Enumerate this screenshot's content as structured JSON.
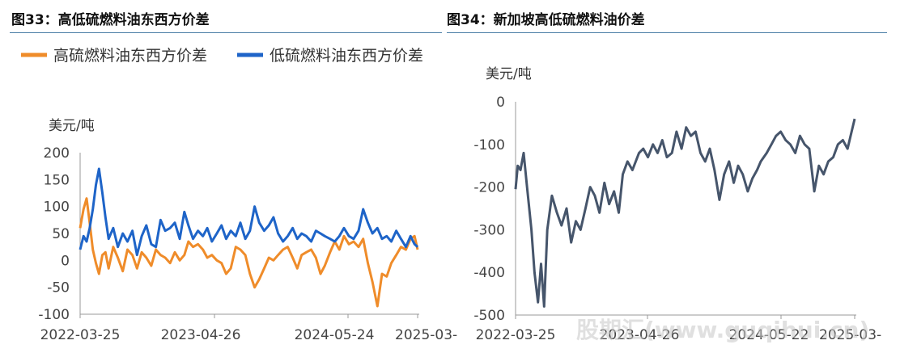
{
  "header": {
    "left_title": "图33：高低硫燃料油东西方价差",
    "right_title": "图34：新加坡高低硫燃料油价差"
  },
  "watermark": "股期汇(www.guqihui.cn)",
  "colors": {
    "hs": "#ef8c2a",
    "ls": "#1e64c8",
    "spread": "#46556b",
    "axis": "#999999",
    "rule": "#4a7ea6"
  },
  "chart_data": [
    {
      "type": "line",
      "title": "",
      "xlabel": "",
      "ylabel": "美元/吨",
      "ylim": [
        -100,
        200
      ],
      "yticks": [
        "200",
        "150",
        "100",
        "50",
        "0",
        "-50",
        "-100"
      ],
      "xtick_labels": [
        "2022-03-25",
        "2023-04-26",
        "2024-05-24",
        "2025-03-"
      ],
      "legend": {
        "position": "top-left",
        "entries": [
          "高硫燃料油东西方价差",
          "低硫燃料油东西方价差"
        ]
      },
      "series": [
        {
          "name": "高硫燃料油东西方价差",
          "color": "#ef8c2a",
          "x": [
            "2022-03-25",
            "2022-04-05",
            "2022-04-15",
            "2022-04-25",
            "2022-05-05",
            "2022-05-15",
            "2022-05-25",
            "2022-06-05",
            "2022-06-15",
            "2022-06-25",
            "2022-07-10",
            "2022-07-25",
            "2022-08-10",
            "2022-08-25",
            "2022-09-10",
            "2022-09-25",
            "2022-10-10",
            "2022-10-25",
            "2022-11-10",
            "2022-11-25",
            "2022-12-10",
            "2022-12-25",
            "2023-01-10",
            "2023-01-25",
            "2023-02-10",
            "2023-02-25",
            "2023-03-10",
            "2023-03-25",
            "2023-04-10",
            "2023-04-26",
            "2023-05-10",
            "2023-05-25",
            "2023-06-10",
            "2023-06-25",
            "2023-07-10",
            "2023-07-25",
            "2023-08-10",
            "2023-08-25",
            "2023-09-10",
            "2023-09-25",
            "2023-10-10",
            "2023-10-25",
            "2023-11-10",
            "2023-11-25",
            "2023-12-10",
            "2023-12-25",
            "2024-01-10",
            "2024-01-25",
            "2024-02-10",
            "2024-02-25",
            "2024-03-10",
            "2024-03-25",
            "2024-04-10",
            "2024-04-25",
            "2024-05-10",
            "2024-05-24",
            "2024-06-10",
            "2024-06-25",
            "2024-07-10",
            "2024-07-25",
            "2024-08-10",
            "2024-08-25",
            "2024-09-10",
            "2024-09-25",
            "2024-10-10",
            "2024-10-25",
            "2024-11-10",
            "2024-11-25",
            "2024-12-10",
            "2024-12-25",
            "2025-01-10",
            "2025-01-25",
            "2025-02-10",
            "2025-02-25",
            "2025-03-10",
            "2025-03-20"
          ],
          "values": [
            60,
            95,
            115,
            70,
            20,
            -5,
            -25,
            10,
            15,
            -15,
            25,
            5,
            -20,
            20,
            10,
            -15,
            15,
            5,
            -10,
            20,
            10,
            5,
            -5,
            15,
            0,
            10,
            35,
            25,
            30,
            20,
            5,
            10,
            0,
            -5,
            -25,
            -15,
            25,
            20,
            10,
            -25,
            -50,
            -35,
            -15,
            5,
            0,
            10,
            20,
            25,
            5,
            -15,
            10,
            15,
            20,
            5,
            -25,
            -10,
            15,
            35,
            20,
            45,
            30,
            35,
            25,
            40,
            -5,
            -40,
            -85,
            -25,
            -30,
            -5,
            10,
            25,
            20,
            40,
            45,
            20
          ]
        },
        {
          "name": "低硫燃料油东西方价差",
          "color": "#1e64c8",
          "x": [
            "2022-03-25",
            "2022-04-05",
            "2022-04-15",
            "2022-04-25",
            "2022-05-05",
            "2022-05-15",
            "2022-05-25",
            "2022-06-05",
            "2022-06-15",
            "2022-06-25",
            "2022-07-10",
            "2022-07-25",
            "2022-08-10",
            "2022-08-25",
            "2022-09-10",
            "2022-09-25",
            "2022-10-10",
            "2022-10-25",
            "2022-11-10",
            "2022-11-25",
            "2022-12-10",
            "2022-12-25",
            "2023-01-10",
            "2023-01-25",
            "2023-02-10",
            "2023-02-25",
            "2023-03-10",
            "2023-03-25",
            "2023-04-10",
            "2023-04-26",
            "2023-05-10",
            "2023-05-25",
            "2023-06-10",
            "2023-06-25",
            "2023-07-10",
            "2023-07-25",
            "2023-08-10",
            "2023-08-25",
            "2023-09-10",
            "2023-09-25",
            "2023-10-10",
            "2023-10-25",
            "2023-11-10",
            "2023-11-25",
            "2023-12-10",
            "2023-12-25",
            "2024-01-10",
            "2024-01-25",
            "2024-02-10",
            "2024-02-25",
            "2024-03-10",
            "2024-03-25",
            "2024-04-10",
            "2024-04-25",
            "2024-05-10",
            "2024-05-24",
            "2024-06-10",
            "2024-06-25",
            "2024-07-10",
            "2024-07-25",
            "2024-08-10",
            "2024-08-25",
            "2024-09-10",
            "2024-09-25",
            "2024-10-10",
            "2024-10-25",
            "2024-11-10",
            "2024-11-25",
            "2024-12-10",
            "2024-12-25",
            "2025-01-10",
            "2025-01-25",
            "2025-02-10",
            "2025-02-25",
            "2025-03-10",
            "2025-03-20"
          ],
          "values": [
            20,
            45,
            35,
            60,
            95,
            140,
            170,
            125,
            80,
            40,
            60,
            25,
            50,
            35,
            55,
            10,
            45,
            65,
            30,
            25,
            75,
            55,
            60,
            70,
            40,
            90,
            65,
            40,
            55,
            45,
            60,
            35,
            50,
            65,
            40,
            55,
            45,
            70,
            40,
            55,
            100,
            70,
            55,
            65,
            80,
            50,
            35,
            45,
            60,
            40,
            50,
            45,
            35,
            55,
            50,
            45,
            40,
            35,
            45,
            60,
            45,
            40,
            55,
            95,
            70,
            50,
            60,
            40,
            45,
            35,
            55,
            40,
            25,
            45,
            30,
            25
          ]
        }
      ]
    },
    {
      "type": "line",
      "title": "",
      "xlabel": "",
      "ylabel": "美元/吨",
      "ylim": [
        -500,
        0
      ],
      "yticks": [
        "0",
        "-100",
        "-200",
        "-300",
        "-400",
        "-500"
      ],
      "xtick_labels": [
        "2022-03-25",
        "2023-04-26",
        "2024-05-22",
        "2025-03-"
      ],
      "series": [
        {
          "color": "#46556b",
          "x": [
            "2022-03-25",
            "2022-04-01",
            "2022-04-10",
            "2022-04-20",
            "2022-05-01",
            "2022-05-15",
            "2022-05-25",
            "2022-06-05",
            "2022-06-15",
            "2022-06-25",
            "2022-07-05",
            "2022-07-20",
            "2022-08-05",
            "2022-08-20",
            "2022-09-05",
            "2022-09-20",
            "2022-10-05",
            "2022-10-20",
            "2022-11-05",
            "2022-11-20",
            "2022-12-05",
            "2022-12-20",
            "2023-01-05",
            "2023-01-20",
            "2023-02-05",
            "2023-02-20",
            "2023-03-05",
            "2023-03-20",
            "2023-04-05",
            "2023-04-26",
            "2023-05-10",
            "2023-05-25",
            "2023-06-10",
            "2023-06-25",
            "2023-07-10",
            "2023-07-25",
            "2023-08-10",
            "2023-08-25",
            "2023-09-10",
            "2023-09-25",
            "2023-10-10",
            "2023-10-25",
            "2023-11-10",
            "2023-11-25",
            "2023-12-10",
            "2023-12-25",
            "2024-01-10",
            "2024-01-25",
            "2024-02-10",
            "2024-02-25",
            "2024-03-10",
            "2024-03-25",
            "2024-04-10",
            "2024-04-25",
            "2024-05-10",
            "2024-05-22",
            "2024-06-10",
            "2024-06-25",
            "2024-07-10",
            "2024-07-25",
            "2024-08-10",
            "2024-08-25",
            "2024-09-10",
            "2024-09-25",
            "2024-10-10",
            "2024-10-25",
            "2024-11-10",
            "2024-11-25",
            "2024-12-10",
            "2024-12-25",
            "2025-01-10",
            "2025-01-25",
            "2025-02-10",
            "2025-02-25",
            "2025-03-10",
            "2025-03-20"
          ],
          "values": [
            -205,
            -150,
            -160,
            -120,
            -200,
            -300,
            -400,
            -470,
            -380,
            -480,
            -300,
            -220,
            -260,
            -290,
            -250,
            -330,
            -280,
            -300,
            -250,
            -200,
            -220,
            -260,
            -190,
            -240,
            -210,
            -260,
            -170,
            -140,
            -160,
            -120,
            -110,
            -130,
            -100,
            -120,
            -90,
            -130,
            -120,
            -70,
            -110,
            -60,
            -80,
            -70,
            -120,
            -140,
            -110,
            -160,
            -230,
            -170,
            -140,
            -190,
            -150,
            -170,
            -210,
            -180,
            -160,
            -140,
            -120,
            -100,
            -80,
            -70,
            -90,
            -100,
            -120,
            -80,
            -100,
            -110,
            -210,
            -150,
            -170,
            -140,
            -130,
            -100,
            -90,
            -110,
            -70,
            -40
          ]
        }
      ]
    }
  ]
}
